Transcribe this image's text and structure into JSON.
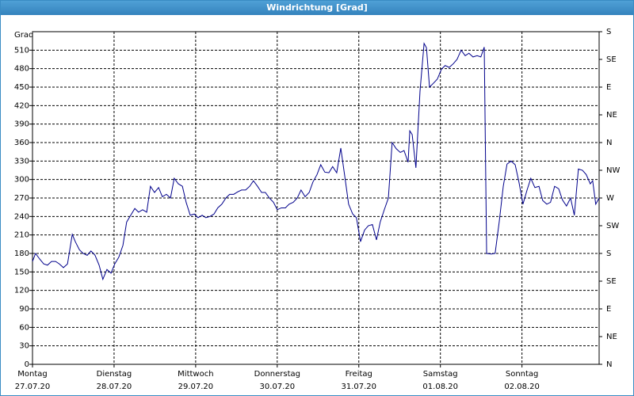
{
  "window": {
    "title": "Windrichtung [Grad]"
  },
  "chart_data": {
    "type": "line",
    "ylabel": "Grad",
    "x": [
      0,
      0.9,
      2.1,
      3.3,
      4.4,
      5.6,
      6.8,
      7.9,
      9.1,
      10.3,
      11.7,
      12.6,
      13.8,
      14.9,
      16.1,
      17.2,
      18.4,
      19.6,
      20.7,
      21.9,
      23.1,
      24.2,
      25.4,
      26.6,
      27.7,
      28.9,
      30.1,
      31.2,
      32.4,
      33.6,
      34.7,
      35.9,
      37.1,
      38.2,
      39.4,
      40.6,
      41.7,
      42.9,
      44.1,
      45.2,
      46.4,
      47.6,
      48.7,
      49.9,
      51.0,
      52.2,
      53.4,
      54.5,
      55.7,
      56.9,
      58.0,
      59.2,
      60.4,
      61.5,
      62.7,
      63.9,
      65.0,
      66.2,
      67.4,
      68.5,
      69.7,
      70.9,
      72.0,
      73.2,
      74.4,
      75.5,
      76.7,
      77.9,
      79.0,
      80.2,
      81.4,
      82.5,
      83.7,
      84.8,
      86.0,
      87.2,
      88.3,
      89.5,
      90.7,
      91.8,
      93.0,
      94.2,
      95.3,
      96.5,
      97.7,
      98.8,
      100.0,
      101.2,
      102.3,
      103.5,
      104.7,
      105.8,
      107.0,
      108.2,
      109.3,
      110.5,
      111.0,
      111.7,
      112.8,
      114.0,
      115.2,
      115.9,
      116.8,
      117.9,
      119.1,
      120.3,
      121.4,
      122.6,
      123.8,
      124.9,
      126.1,
      127.3,
      128.4,
      129.6,
      130.8,
      131.9,
      132.9,
      133.6,
      135.0,
      136.1,
      137.3,
      138.5,
      139.6,
      140.8,
      142.0,
      143.1,
      144.3,
      145.5,
      146.6,
      147.8,
      149.0,
      150.1,
      151.3,
      152.4,
      153.6,
      154.8,
      155.9,
      157.1,
      158.3,
      159.4,
      160.6,
      161.8,
      162.9,
      164.1,
      164.8,
      165.7,
      166.7
    ],
    "series": [
      {
        "name": "Windrichtung",
        "color": "#00008b",
        "values": [
          167,
          180,
          171,
          163,
          161,
          167,
          167,
          163,
          157,
          163,
          211,
          199,
          186,
          180,
          177,
          184,
          177,
          161,
          138,
          154,
          148,
          163,
          174,
          193,
          231,
          242,
          253,
          247,
          251,
          247,
          289,
          279,
          287,
          272,
          276,
          270,
          302,
          293,
          289,
          263,
          242,
          244,
          238,
          242,
          238,
          240,
          244,
          254,
          260,
          270,
          276,
          276,
          280,
          283,
          283,
          289,
          298,
          289,
          279,
          279,
          270,
          263,
          251,
          254,
          254,
          260,
          263,
          270,
          283,
          272,
          279,
          296,
          308,
          324,
          312,
          311,
          321,
          311,
          351,
          308,
          260,
          244,
          238,
          199,
          218,
          225,
          227,
          202,
          231,
          251,
          270,
          360,
          350,
          344,
          347,
          328,
          379,
          373,
          319,
          443,
          521,
          514,
          450,
          456,
          463,
          479,
          485,
          482,
          488,
          495,
          510,
          501,
          505,
          499,
          501,
          499,
          515,
          180,
          179,
          180,
          231,
          289,
          325,
          330,
          324,
          296,
          260,
          283,
          302,
          287,
          289,
          266,
          260,
          263,
          289,
          285,
          267,
          257,
          270,
          242,
          317,
          315,
          308,
          293,
          298,
          260,
          270
        ]
      }
    ],
    "xlim": [
      0,
      166.7
    ],
    "xticks": [
      {
        "value": 0,
        "label": "Montag",
        "date": "27.07.20"
      },
      {
        "value": 24,
        "label": "Dienstag",
        "date": "28.07.20"
      },
      {
        "value": 48,
        "label": "Mittwoch",
        "date": "29.07.20"
      },
      {
        "value": 72,
        "label": "Donnerstag",
        "date": "30.07.20"
      },
      {
        "value": 96,
        "label": "Freitag",
        "date": "31.07.20"
      },
      {
        "value": 120,
        "label": "Samstag",
        "date": "01.08.20"
      },
      {
        "value": 144,
        "label": "Sonntag",
        "date": "02.08.20"
      }
    ],
    "ylim": [
      0,
      540
    ],
    "yticks": [
      0,
      30,
      60,
      90,
      120,
      150,
      180,
      210,
      240,
      270,
      300,
      330,
      360,
      390,
      420,
      450,
      480,
      510
    ],
    "y2lim": [
      0,
      540
    ],
    "y2ticks": [
      {
        "value": 0,
        "label": "N"
      },
      {
        "value": 45,
        "label": "NE"
      },
      {
        "value": 90,
        "label": "E"
      },
      {
        "value": 135,
        "label": "SE"
      },
      {
        "value": 180,
        "label": "S"
      },
      {
        "value": 225,
        "label": "SW"
      },
      {
        "value": 270,
        "label": "W"
      },
      {
        "value": 315,
        "label": "NW"
      },
      {
        "value": 360,
        "label": "N"
      },
      {
        "value": 405,
        "label": "NE"
      },
      {
        "value": 450,
        "label": "E"
      },
      {
        "value": 495,
        "label": "SE"
      },
      {
        "value": 540,
        "label": "S"
      }
    ],
    "grid": true
  }
}
